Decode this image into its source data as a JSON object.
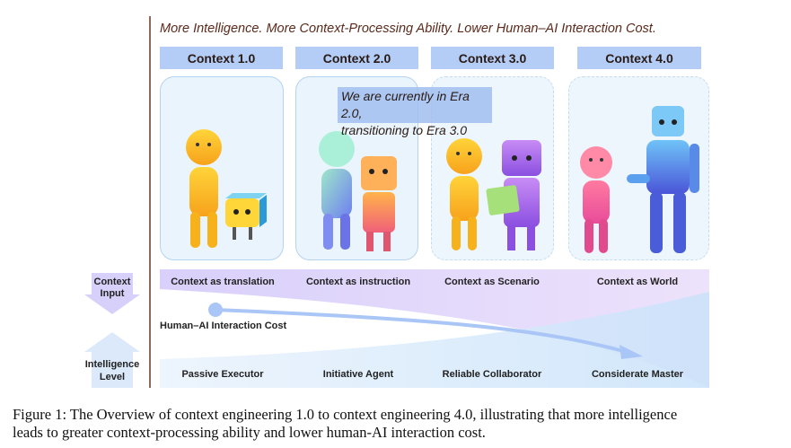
{
  "headline": "More Intelligence. More Context-Processing Ability. Lower Human–AI Interaction Cost.",
  "eras": [
    "Context 1.0",
    "Context 2.0",
    "Context 3.0",
    "Context 4.0"
  ],
  "callout": {
    "line1": "We are currently  in Era 2.0,",
    "line2": "transitioning to Era 3.0"
  },
  "context_input": {
    "label_line1": "Context",
    "label_line2": "Input",
    "items": [
      "Context as translation",
      "Context as instruction",
      "Context as Scenario",
      "Context as World"
    ]
  },
  "interaction_cost": {
    "label": "Human–AI Interaction Cost"
  },
  "intelligence_level": {
    "label_line1": "Intelligence",
    "label_line2": "Level",
    "items": [
      "Passive Executor",
      "Initiative Agent",
      "Reliable Collaborator",
      "Considerate Master"
    ]
  },
  "caption": {
    "line1": "Figure 1: The Overview of context engineering 1.0 to context engineering 4.0, illustrating that more intelligence",
    "line2": "leads to greater context-processing ability and lower human-AI interaction cost."
  },
  "colors": {
    "era_header": "#b3cdf7",
    "headline": "#5b2a1c",
    "purple_band": "#ddd6fb",
    "blue_band": "#d6e8fb",
    "arrow": "#a9c6f6"
  }
}
